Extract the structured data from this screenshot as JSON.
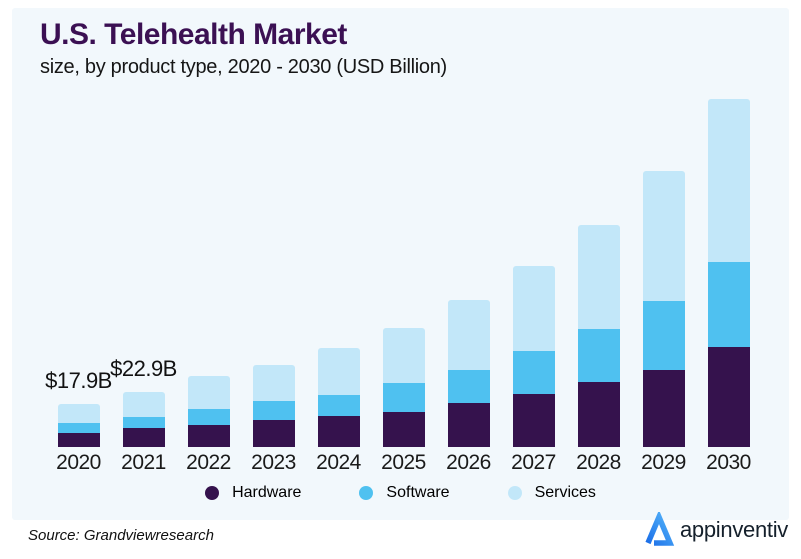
{
  "header": {
    "title": "U.S. Telehealth Market",
    "subtitle": "size, by product type, 2020 - 2030 (USD Billion)"
  },
  "chart_data": {
    "type": "bar",
    "stacked": true,
    "title": "U.S. Telehealth Market",
    "subtitle": "size, by product type, 2020 - 2030 (USD Billion)",
    "unit": "USD Billion",
    "categories": [
      "2020",
      "2021",
      "2022",
      "2023",
      "2024",
      "2025",
      "2026",
      "2027",
      "2028",
      "2029",
      "2030"
    ],
    "series": [
      {
        "name": "Hardware",
        "color": "#35124d",
        "values": [
          5.8,
          7.9,
          9.2,
          11.2,
          12.9,
          14.6,
          18.3,
          21.9,
          27.1,
          32.1,
          41.7
        ]
      },
      {
        "name": "Software",
        "color": "#4fc1f0",
        "values": [
          4.2,
          4.6,
          6.6,
          7.9,
          8.8,
          12.1,
          13.8,
          18.1,
          22.1,
          28.8,
          35.4
        ]
      },
      {
        "name": "Services",
        "color": "#c2e7f9",
        "values": [
          7.9,
          10.4,
          13.8,
          15.1,
          19.6,
          22.9,
          29.2,
          35.4,
          43.3,
          54.2,
          67.9
        ]
      }
    ],
    "totals": [
      17.9,
      22.9,
      29.6,
      34.2,
      41.3,
      49.6,
      61.3,
      75.4,
      92.5,
      115.1,
      145.0
    ],
    "annotations": [
      {
        "category": "2020",
        "text": "$17.9B"
      },
      {
        "category": "2021",
        "text": "$22.9B"
      }
    ],
    "legend_position": "bottom",
    "grid": false,
    "ylim": [
      0,
      150
    ]
  },
  "footer": {
    "source": "Source: Grandviewresearch",
    "logo_text": "appinventiv"
  },
  "colors": {
    "title": "#3b1053",
    "panel_background": "#f2f8fc",
    "hardware": "#35124d",
    "software": "#4fc1f0",
    "services": "#c2e7f9",
    "logo_blue_dark": "#1c6fe8",
    "logo_blue_light": "#52b2f9"
  }
}
